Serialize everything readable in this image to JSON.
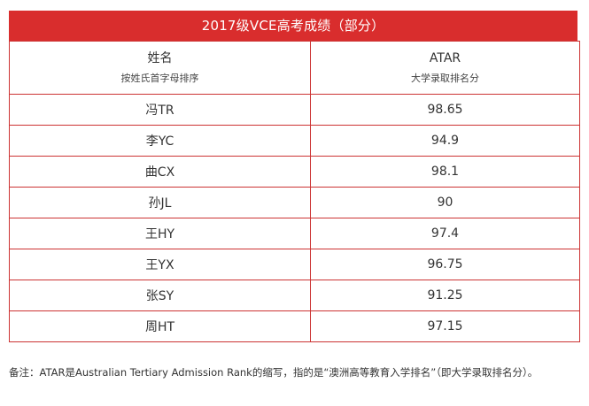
{
  "title": "2017级VCE高考成绩（部分）",
  "headers": {
    "name_main": "姓名",
    "name_sub": "按姓氏首字母排序",
    "score_main": "ATAR",
    "score_sub": "大学录取排名分"
  },
  "rows": [
    {
      "name": "冯TR",
      "score": "98.65"
    },
    {
      "name": "李YC",
      "score": "94.9"
    },
    {
      "name": "曲CX",
      "score": "98.1"
    },
    {
      "name": "孙JL",
      "score": "90"
    },
    {
      "name": "王HY",
      "score": "97.4"
    },
    {
      "name": "王YX",
      "score": "96.75"
    },
    {
      "name": "张SY",
      "score": "91.25"
    },
    {
      "name": "周HT",
      "score": "97.15"
    }
  ],
  "footnote": "备注：ATAR是Australian Tertiary Admission Rank的缩写，指的是“澳洲高等教育入学排名”（即大学录取排名分）。",
  "colors": {
    "accent": "#d92d2d",
    "border": "#cc3333"
  }
}
